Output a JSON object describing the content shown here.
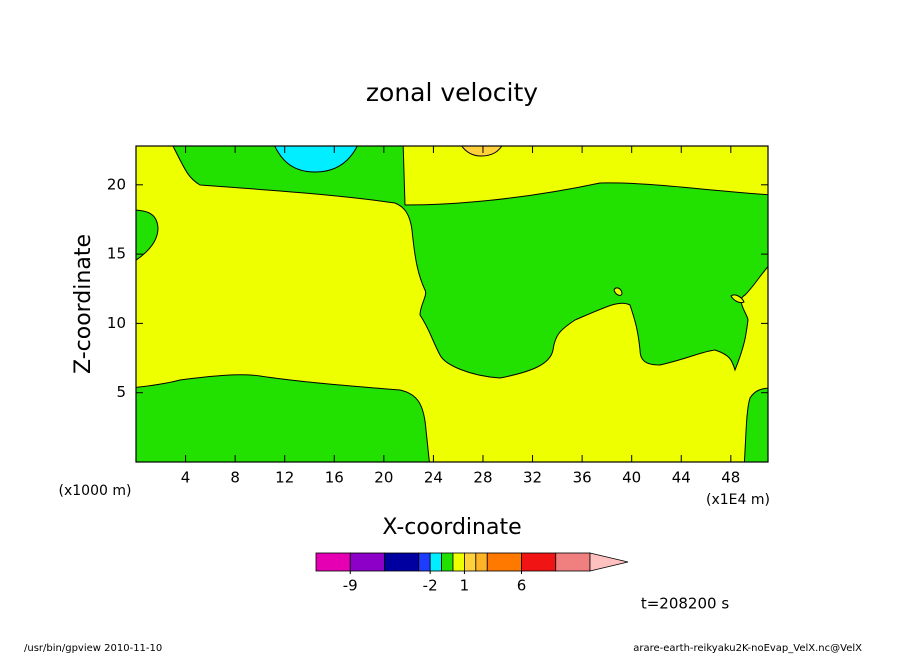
{
  "chart_data": {
    "type": "contour",
    "title": "zonal velocity",
    "xlabel": "X-coordinate",
    "ylabel": "Z-coordinate",
    "xunit": "(x1E4 m)",
    "yunit": "(x1000 m)",
    "xlim": [
      0,
      51
    ],
    "ylim": [
      0,
      22.8
    ],
    "xticks": [
      4,
      8,
      12,
      16,
      20,
      24,
      28,
      32,
      36,
      40,
      44,
      48
    ],
    "yticks": [
      5,
      10,
      15,
      20
    ],
    "colorbar": {
      "levels": [
        -12,
        -9,
        -6,
        -3,
        -2,
        -1,
        0,
        1,
        2,
        3,
        6,
        9,
        12
      ],
      "colors": [
        "#e600b4",
        "#8c00c8",
        "#0000a0",
        "#1e3cff",
        "#00eeff",
        "#22e000",
        "#eeff00",
        "#ffd23c",
        "#ffb428",
        "#ff7800",
        "#f01414",
        "#f08080",
        "#ffc0c0"
      ],
      "ticks": [
        -9,
        -2,
        1,
        6
      ]
    },
    "annotation": "t=208200 s",
    "footer_left": "/usr/bin/gpview  2010-11-10",
    "footer_right": "arare-earth-reikyaku2K-noEvap_VelX.nc@VelX"
  }
}
